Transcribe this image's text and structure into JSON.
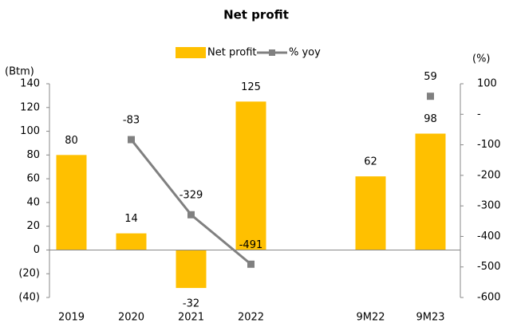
{
  "chart_data": {
    "type": "bar",
    "title": "Net profit",
    "categories": [
      "2019",
      "2020",
      "2021",
      "2022",
      null,
      "9M22",
      "9M23"
    ],
    "series": [
      {
        "name": "Net profit",
        "type": "bar",
        "color": "#FFC000",
        "values": [
          80,
          14,
          -32,
          125,
          null,
          62,
          98
        ]
      },
      {
        "name": "% yoy",
        "type": "line",
        "color": "#808080",
        "axis": "y2",
        "values": [
          null,
          -83,
          -329,
          -491,
          null,
          null,
          59
        ]
      }
    ],
    "y_label": "(Btm)",
    "y2_label": "(%)",
    "ylim": [
      -40,
      140
    ],
    "yticks": [
      {
        "value": -40,
        "label": "(40)"
      },
      {
        "value": -20,
        "label": "(20)"
      },
      0,
      20,
      40,
      60,
      80,
      100,
      120,
      140
    ],
    "y2lim": [
      -600,
      100
    ],
    "y2ticks": [
      -600,
      -500,
      -400,
      -300,
      -200,
      -100,
      {
        "value": 0,
        "label": "-"
      },
      100
    ],
    "legend": "top"
  }
}
